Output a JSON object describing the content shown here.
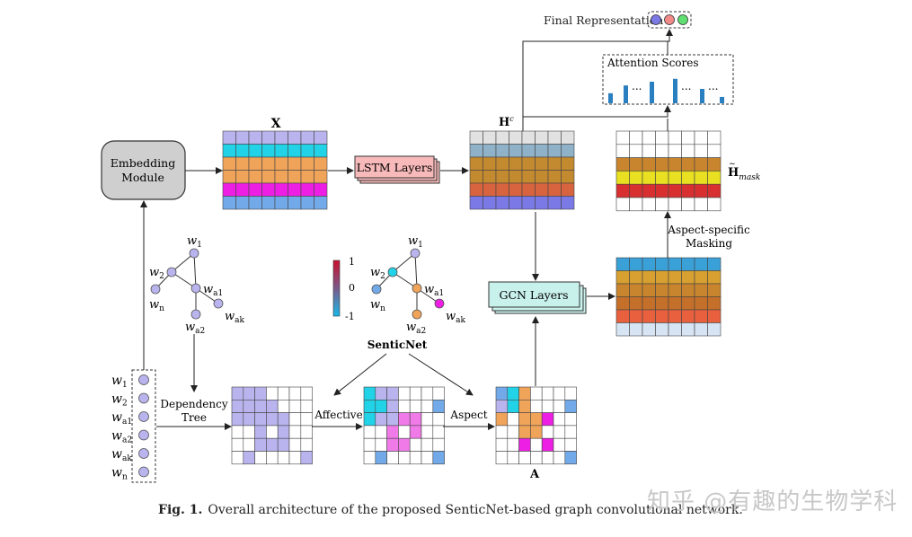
{
  "title": "Final Representation",
  "labels": {
    "embedding_module_line1": "Embedding",
    "embedding_module_line2": "Module",
    "x": "X",
    "lstm": "LSTM Layers",
    "hc": "H",
    "hc_sup": "c",
    "attention": "Attention Scores",
    "attention_dots": "...",
    "hmask": "H",
    "hmask_sub": "mask",
    "gcn": "GCN Layers",
    "masking_line1": "Aspect-specific",
    "masking_line2": "Masking",
    "senticnet": "SenticNet",
    "dependency_line1": "Dependency",
    "dependency_line2": "Tree",
    "affective": "Affective",
    "aspect": "Aspect",
    "a": "A",
    "colorbar_top": "1",
    "colorbar_mid": "0",
    "colorbar_bottom": "-1"
  },
  "words": [
    {
      "base": "w",
      "sub": "1"
    },
    {
      "base": "w",
      "sub": "2"
    },
    {
      "base": "w",
      "sub": "a1"
    },
    {
      "base": "w",
      "sub": "a2"
    },
    {
      "base": "w",
      "sub": "ak"
    },
    {
      "base": "w",
      "sub": "n"
    }
  ],
  "tree1_labels": [
    {
      "base": "w",
      "sub": "1"
    },
    {
      "base": "w",
      "sub": "2"
    },
    {
      "base": "w",
      "sub": "a1"
    },
    {
      "base": "w",
      "sub": "n"
    },
    {
      "base": "w",
      "sub": "a2"
    },
    {
      "base": "w",
      "sub": "ak"
    }
  ],
  "tree2_labels": [
    {
      "base": "w",
      "sub": "1"
    },
    {
      "base": "w",
      "sub": "2"
    },
    {
      "base": "w",
      "sub": "a1"
    },
    {
      "base": "w",
      "sub": "n"
    },
    {
      "base": "w",
      "sub": "a2"
    },
    {
      "base": "w",
      "sub": "ak"
    }
  ],
  "caption": {
    "prefix": "Fig. 1.",
    "text": "Overall architecture of the proposed SenticNet-based graph convolutional network."
  },
  "watermark": "知乎 @有趣的生物学科",
  "colors": {
    "lavender": "#b9b4ee",
    "cyan": "#22d3e8",
    "orange": "#f0a45a",
    "magenta": "#ee1fe4",
    "blue": "#72a9e8",
    "purple_dark": "#7b79e6",
    "lstm_fill": "#f7b9b9",
    "gcn_fill": "#c9f1ec",
    "embed_fill": "#cfcfcf",
    "bar": "#2a7fc0",
    "final_blue": "#7b79e6",
    "final_red": "#f28a8a",
    "final_green": "#5fe070"
  },
  "matrices": {
    "x_rows": [
      "lavender",
      "cyan",
      "orange",
      "orange",
      "magenta",
      "blue"
    ],
    "hc_rows": [
      "#e2e2e2",
      "#8fb2c9",
      "#c48a30",
      "#c48a30",
      "#d8643f",
      "#7b79e6"
    ],
    "hmask_rows": [
      "empty",
      "empty",
      "#c8852e",
      "#e8e020",
      "#d83030",
      "empty"
    ],
    "gcnout_rows": [
      "#3aa0d8",
      "#d8a030",
      "#c8852e",
      "#c4702a",
      "#e8603e",
      "#d6e4f4"
    ]
  },
  "adjacency": {
    "dependency": [
      [
        "lavender",
        "lavender",
        "lavender",
        "",
        "",
        "",
        ""
      ],
      [
        "lavender",
        "lavender",
        "lavender",
        "lavender",
        "",
        "",
        ""
      ],
      [
        "lavender",
        "lavender",
        "lavender",
        "lavender",
        "lavender",
        "",
        ""
      ],
      [
        "",
        "",
        "lavender",
        "",
        "lavender",
        "",
        ""
      ],
      [
        "",
        "",
        "lavender",
        "lavender",
        "lavender",
        "",
        ""
      ],
      [
        "",
        "lavender",
        "",
        "",
        "",
        "",
        "lavender"
      ]
    ],
    "affective": [
      [
        "cyan",
        "lavender",
        "lavender",
        "",
        "",
        "",
        ""
      ],
      [
        "cyan",
        "cyan",
        "lavender",
        "",
        "",
        "",
        "#72a9e8"
      ],
      [
        "cyan",
        "lavender",
        "lavender",
        "#f07ae8",
        "#f07ae8",
        "",
        ""
      ],
      [
        "",
        "",
        "#f07ae8",
        "",
        "#f07ae8",
        "",
        ""
      ],
      [
        "",
        "",
        "#f07ae8",
        "#f07ae8",
        "",
        "",
        ""
      ],
      [
        "",
        "#72a9e8",
        "",
        "",
        "",
        "",
        "#72a9e8"
      ]
    ],
    "aspect": [
      [
        "#72a9e8",
        "cyan",
        "orange",
        "",
        "",
        "",
        ""
      ],
      [
        "lavender",
        "cyan",
        "orange",
        "",
        "",
        "",
        "#72a9e8"
      ],
      [
        "orange",
        "",
        "orange",
        "orange",
        "magenta",
        "",
        ""
      ],
      [
        "",
        "",
        "orange",
        "orange",
        "",
        "",
        ""
      ],
      [
        "",
        "",
        "magenta",
        "",
        "magenta",
        "",
        ""
      ],
      [
        "",
        "",
        "",
        "",
        "",
        "",
        "#72a9e8"
      ]
    ]
  },
  "attention_bars": [
    0.35,
    0.62,
    0.75,
    0.85,
    0.5,
    0.22
  ]
}
